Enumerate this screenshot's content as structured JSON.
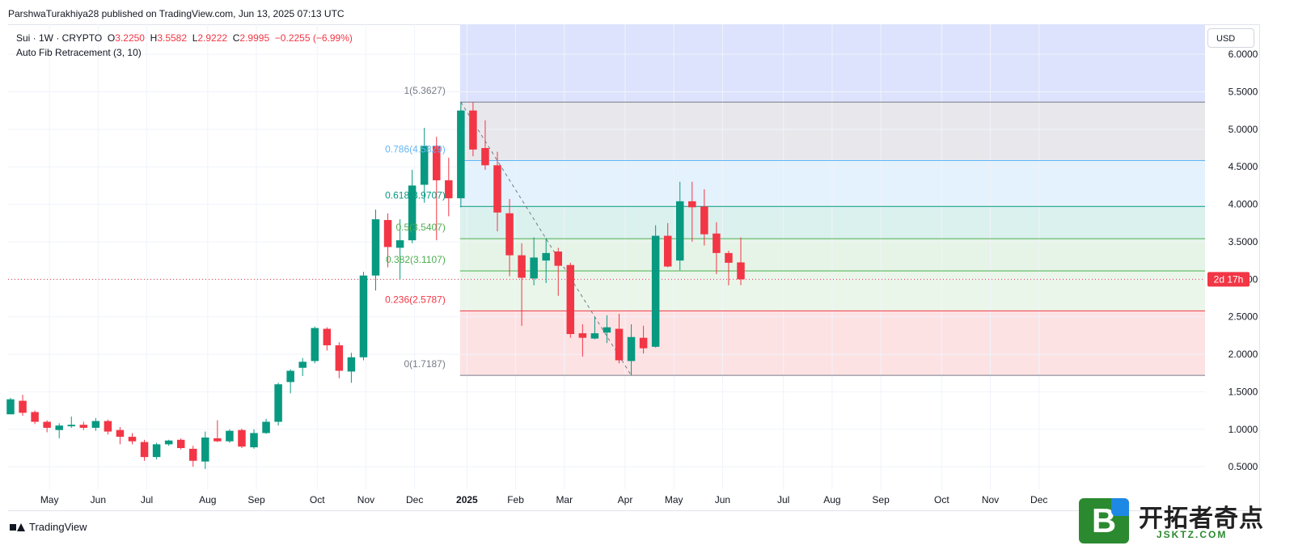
{
  "header": {
    "published_text": "ParshwaTurakhiya28 published on TradingView.com, Jun 13, 2025 07:13 UTC"
  },
  "legend": {
    "symbol": "Sui · 1W · CRYPTO",
    "o_label": "O",
    "o_value": "3.2250",
    "h_label": "H",
    "h_value": "3.5582",
    "l_label": "L",
    "l_value": "2.9222",
    "c_label": "C",
    "c_value": "2.9995",
    "change": "−0.2255 (−6.99%)",
    "indicator": "Auto Fib Retracement (3, 10)"
  },
  "currency_button": "USD",
  "countdown": "2d 17h",
  "footer": {
    "brand": "TradingView"
  },
  "watermark": {
    "badge": "B",
    "title": "开拓者奇点",
    "subtitle": "JSKTZ.COM"
  },
  "colors": {
    "up": "#089981",
    "down": "#f23645",
    "countdown_bg": "#f23645"
  },
  "chart_data": {
    "type": "candlestick",
    "title": "",
    "ylim": [
      0.2,
      6.4
    ],
    "y_ticks": [
      "0.5000",
      "1.0000",
      "1.5000",
      "2.0000",
      "2.5000",
      "3.0000",
      "3.5000",
      "4.0000",
      "4.5000",
      "5.0000",
      "5.5000",
      "6.0000"
    ],
    "y_tick_values": [
      0.5,
      1.0,
      1.5,
      2.0,
      2.5,
      3.0,
      3.5,
      4.0,
      4.5,
      5.0,
      5.5,
      6.0
    ],
    "x_tick_labels": [
      "May",
      "Jun",
      "Jul",
      "Aug",
      "Sep",
      "Oct",
      "Nov",
      "Dec",
      "2025",
      "Feb",
      "Mar",
      "Apr",
      "May",
      "Jun",
      "Jul",
      "Aug",
      "Sep",
      "Oct",
      "Nov",
      "Dec"
    ],
    "x_tick_weeks": [
      3.2,
      7.2,
      11.2,
      16.2,
      20.2,
      25.2,
      29.2,
      33.2,
      37.5,
      41.5,
      45.5,
      50.5,
      54.5,
      58.5,
      63.5,
      67.5,
      71.5,
      76.5,
      80.5,
      84.5
    ],
    "bold_tick": "2025",
    "current_price": 2.9995,
    "fib_levels": [
      {
        "ratio": 1,
        "price": 5.3627,
        "label": "1(5.3627)",
        "color": "#787b86",
        "fill": "#e8e8ec"
      },
      {
        "ratio": 0.786,
        "price": 4.5829,
        "label": "0.786(4.5829)",
        "color": "#64b5f6",
        "fill": "#e3f2fd"
      },
      {
        "ratio": 0.618,
        "price": 3.9707,
        "label": "0.618(3.9707)",
        "color": "#089981",
        "fill": "#dbf1ee"
      },
      {
        "ratio": 0.5,
        "price": 3.5407,
        "label": "0.5(3.5407)",
        "color": "#4caf50",
        "fill": "#e5f4e6"
      },
      {
        "ratio": 0.382,
        "price": 3.1107,
        "label": "0.382(3.1107)",
        "color": "#4caf50",
        "fill": "#eaf6ea"
      },
      {
        "ratio": 0.236,
        "price": 2.5787,
        "label": "0.236(2.5787)",
        "color": "#f23645",
        "fill": "#fde2e4"
      },
      {
        "ratio": 0,
        "price": 1.7187,
        "label": "0(1.7187)",
        "color": "#787b86",
        "fill": ""
      }
    ],
    "candles": [
      {
        "o": 1.2,
        "h": 1.42,
        "l": 1.2,
        "c": 1.4
      },
      {
        "o": 1.38,
        "h": 1.46,
        "l": 1.18,
        "c": 1.22
      },
      {
        "o": 1.23,
        "h": 1.25,
        "l": 1.07,
        "c": 1.1
      },
      {
        "o": 1.1,
        "h": 1.12,
        "l": 0.96,
        "c": 1.02
      },
      {
        "o": 0.99,
        "h": 1.08,
        "l": 0.88,
        "c": 1.05
      },
      {
        "o": 1.04,
        "h": 1.17,
        "l": 1.02,
        "c": 1.06
      },
      {
        "o": 1.06,
        "h": 1.1,
        "l": 0.99,
        "c": 1.02
      },
      {
        "o": 1.02,
        "h": 1.15,
        "l": 0.98,
        "c": 1.11
      },
      {
        "o": 1.11,
        "h": 1.13,
        "l": 0.93,
        "c": 0.97
      },
      {
        "o": 0.99,
        "h": 1.03,
        "l": 0.8,
        "c": 0.9
      },
      {
        "o": 0.9,
        "h": 0.95,
        "l": 0.8,
        "c": 0.84
      },
      {
        "o": 0.83,
        "h": 0.86,
        "l": 0.58,
        "c": 0.63
      },
      {
        "o": 0.63,
        "h": 0.82,
        "l": 0.6,
        "c": 0.8
      },
      {
        "o": 0.8,
        "h": 0.86,
        "l": 0.78,
        "c": 0.85
      },
      {
        "o": 0.86,
        "h": 0.88,
        "l": 0.73,
        "c": 0.75
      },
      {
        "o": 0.74,
        "h": 0.78,
        "l": 0.5,
        "c": 0.58
      },
      {
        "o": 0.57,
        "h": 0.97,
        "l": 0.47,
        "c": 0.89
      },
      {
        "o": 0.88,
        "h": 1.12,
        "l": 0.83,
        "c": 0.84
      },
      {
        "o": 0.84,
        "h": 1.0,
        "l": 0.82,
        "c": 0.98
      },
      {
        "o": 0.99,
        "h": 1.01,
        "l": 0.75,
        "c": 0.77
      },
      {
        "o": 0.76,
        "h": 1.0,
        "l": 0.74,
        "c": 0.95
      },
      {
        "o": 0.95,
        "h": 1.14,
        "l": 0.94,
        "c": 1.1
      },
      {
        "o": 1.1,
        "h": 1.62,
        "l": 1.05,
        "c": 1.6
      },
      {
        "o": 1.63,
        "h": 1.8,
        "l": 1.48,
        "c": 1.78
      },
      {
        "o": 1.82,
        "h": 1.95,
        "l": 1.71,
        "c": 1.9
      },
      {
        "o": 1.91,
        "h": 2.37,
        "l": 1.88,
        "c": 2.35
      },
      {
        "o": 2.34,
        "h": 2.36,
        "l": 2.05,
        "c": 2.12
      },
      {
        "o": 2.12,
        "h": 2.16,
        "l": 1.68,
        "c": 1.78
      },
      {
        "o": 1.77,
        "h": 2.02,
        "l": 1.62,
        "c": 1.96
      },
      {
        "o": 1.96,
        "h": 3.1,
        "l": 1.92,
        "c": 3.05
      },
      {
        "o": 3.05,
        "h": 3.93,
        "l": 2.85,
        "c": 3.8
      },
      {
        "o": 3.79,
        "h": 3.88,
        "l": 3.16,
        "c": 3.43
      },
      {
        "o": 3.42,
        "h": 3.8,
        "l": 3.0,
        "c": 3.52
      },
      {
        "o": 3.52,
        "h": 4.46,
        "l": 3.48,
        "c": 4.25
      },
      {
        "o": 4.26,
        "h": 5.02,
        "l": 4.02,
        "c": 4.78
      },
      {
        "o": 4.78,
        "h": 4.9,
        "l": 3.52,
        "c": 4.32
      },
      {
        "o": 4.32,
        "h": 4.62,
        "l": 3.84,
        "c": 4.08
      },
      {
        "o": 4.08,
        "h": 5.36,
        "l": 3.96,
        "c": 5.25
      },
      {
        "o": 5.25,
        "h": 5.36,
        "l": 4.64,
        "c": 4.73
      },
      {
        "o": 4.75,
        "h": 5.12,
        "l": 4.46,
        "c": 4.52
      },
      {
        "o": 4.52,
        "h": 4.7,
        "l": 3.64,
        "c": 3.89
      },
      {
        "o": 3.88,
        "h": 4.07,
        "l": 3.04,
        "c": 3.32
      },
      {
        "o": 3.32,
        "h": 3.48,
        "l": 2.38,
        "c": 3.02
      },
      {
        "o": 3.01,
        "h": 3.56,
        "l": 2.92,
        "c": 3.29
      },
      {
        "o": 3.25,
        "h": 3.55,
        "l": 2.95,
        "c": 3.35
      },
      {
        "o": 3.37,
        "h": 3.42,
        "l": 2.78,
        "c": 3.18
      },
      {
        "o": 3.19,
        "h": 3.22,
        "l": 2.22,
        "c": 2.27
      },
      {
        "o": 2.28,
        "h": 2.4,
        "l": 1.97,
        "c": 2.22
      },
      {
        "o": 2.21,
        "h": 2.5,
        "l": 2.2,
        "c": 2.28
      },
      {
        "o": 2.29,
        "h": 2.52,
        "l": 2.15,
        "c": 2.36
      },
      {
        "o": 2.34,
        "h": 2.54,
        "l": 1.88,
        "c": 1.92
      },
      {
        "o": 1.91,
        "h": 2.4,
        "l": 1.72,
        "c": 2.23
      },
      {
        "o": 2.22,
        "h": 2.38,
        "l": 2.01,
        "c": 2.08
      },
      {
        "o": 2.1,
        "h": 3.72,
        "l": 2.09,
        "c": 3.58
      },
      {
        "o": 3.58,
        "h": 3.75,
        "l": 3.16,
        "c": 3.17
      },
      {
        "o": 3.25,
        "h": 4.3,
        "l": 3.12,
        "c": 4.04
      },
      {
        "o": 4.04,
        "h": 4.3,
        "l": 3.5,
        "c": 3.96
      },
      {
        "o": 3.97,
        "h": 4.2,
        "l": 3.45,
        "c": 3.6
      },
      {
        "o": 3.61,
        "h": 3.76,
        "l": 3.07,
        "c": 3.35
      },
      {
        "o": 3.35,
        "h": 3.38,
        "l": 2.92,
        "c": 3.22
      },
      {
        "o": 3.225,
        "h": 3.5582,
        "l": 2.9222,
        "c": 2.9995
      }
    ]
  }
}
